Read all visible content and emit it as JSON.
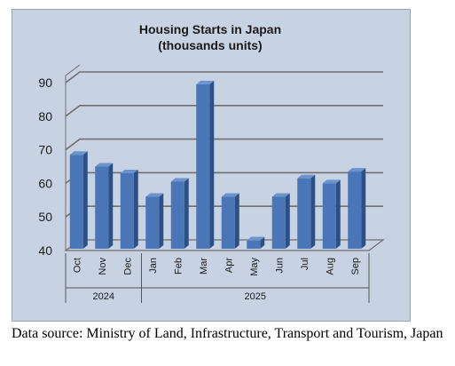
{
  "chart_data": {
    "type": "bar",
    "title": "Housing Starts in Japan",
    "subtitle": "(thousands units)",
    "categories": [
      "Oct",
      "Nov",
      "Dec",
      "Jan",
      "Feb",
      "Mar",
      "Apr",
      "May",
      "Jun",
      "Jul",
      "Aug",
      "Sep"
    ],
    "groups": [
      {
        "label": "2024",
        "categories": [
          "Oct",
          "Nov",
          "Dec"
        ]
      },
      {
        "label": "2025",
        "categories": [
          "Jan",
          "Feb",
          "Mar",
          "Apr",
          "May",
          "Jun",
          "Jul",
          "Aug",
          "Sep"
        ]
      }
    ],
    "values": [
      68.5,
      65,
      63,
      56,
      60.5,
      89.5,
      56,
      43,
      56,
      61.5,
      60,
      63.5
    ],
    "ylim": [
      40,
      90
    ],
    "yticks": [
      40,
      50,
      60,
      70,
      80,
      90
    ],
    "grid": true,
    "bar_color": "#4a76b8",
    "background_color": "#c7d2e3"
  },
  "source_note": "Data source: Ministry of Land, Infrastructure, Transport and Tourism, Japan"
}
